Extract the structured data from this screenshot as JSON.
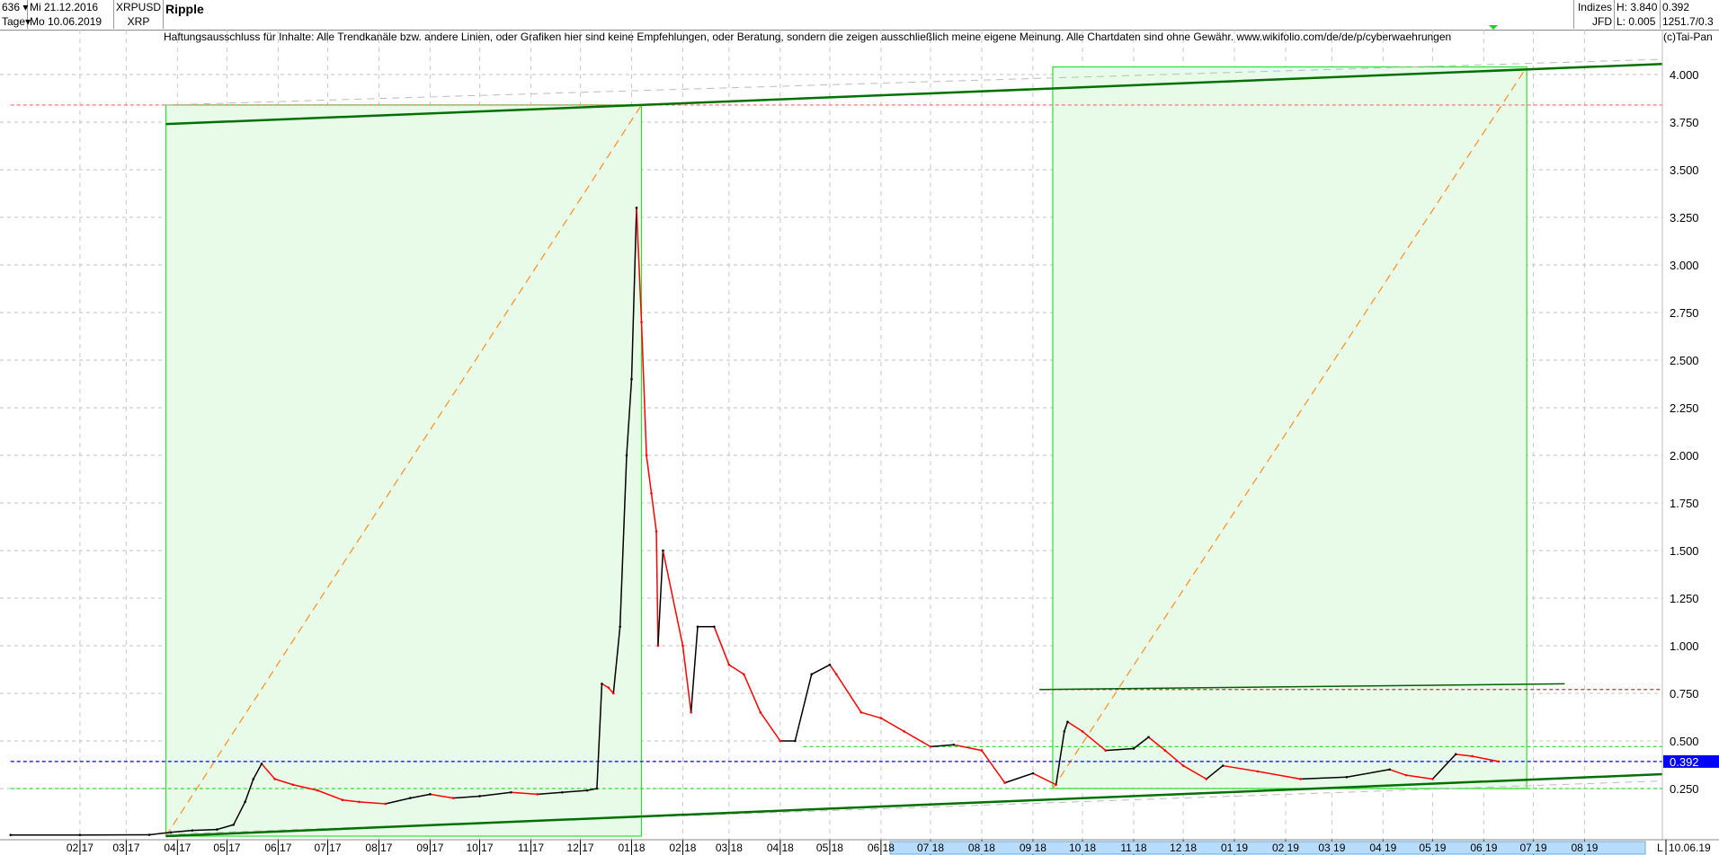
{
  "header": {
    "count_select": "636 ▾",
    "period_select": "Tage▾",
    "start_date": "Mi 21.12.2016",
    "end_date": "Mo 10.06.2019",
    "symbol": "XRPUSD",
    "symbol_short": "XRP",
    "title": "Ripple",
    "group": "Indizes",
    "broker": "JFD",
    "high": "H: 3.840",
    "low": "L: 0.005",
    "last": "0.392",
    "info": "1251.7/0.3"
  },
  "disclaimer": "Haftungsausschluss für Inhalte: Alle Trendkanäle bzw. andere Linien, oder Grafiken hier sind keine Empfehlungen, oder Beratung, sondern die zeigen ausschließlich meine eigene Meinung. Alle Chartdaten sind ohne Gewähr.  www.wikifolio.com/de/de/p/cyberwaehrungen",
  "copyright": "(c)Tai-Pan",
  "bottom": {
    "scroll_marker": "L",
    "date": "10.06.19"
  },
  "colors": {
    "up": "#000000",
    "down": "#ff0000",
    "box_fill": "#e8fbe8",
    "box_stroke": "#33dd33",
    "trend": "#007000",
    "last_price": "#0000ff",
    "diagonal": "#ff8c1a"
  },
  "chart_data": {
    "type": "line",
    "title": "Ripple",
    "ylim": [
      0,
      4.1
    ],
    "grid": true,
    "y_ticks": [
      "0.250",
      "0.500",
      "0.750",
      "1.000",
      "1.250",
      "1.500",
      "1.750",
      "2.000",
      "2.250",
      "2.500",
      "2.750",
      "3.000",
      "3.250",
      "3.500",
      "3.750",
      "4.000"
    ],
    "x_ticks": [
      "02 17",
      "03 17",
      "04 17",
      "05 17",
      "06 17",
      "07 17",
      "08 17",
      "09 17",
      "10 17",
      "11 17",
      "12 17",
      "01 18",
      "02 18",
      "03 18",
      "04 18",
      "05 18",
      "06 18",
      "07 18",
      "08 18",
      "09 18",
      "10 18",
      "11 18",
      "12 18",
      "01 19",
      "02 19",
      "03 19",
      "04 19",
      "05 19",
      "06 19",
      "07 19",
      "08 19"
    ],
    "last_value": "0.392",
    "series": [
      {
        "x": [
          "2016-12-21",
          "2017-02-01",
          "2017-03-15",
          "2017-03-28",
          "2017-04-10",
          "2017-04-25",
          "2017-05-05",
          "2017-05-12",
          "2017-05-17",
          "2017-05-22",
          "2017-05-30",
          "2017-06-10",
          "2017-06-25",
          "2017-07-10",
          "2017-07-20",
          "2017-08-05",
          "2017-08-20",
          "2017-09-01",
          "2017-09-15",
          "2017-10-01",
          "2017-10-20",
          "2017-11-05",
          "2017-11-20",
          "2017-12-05",
          "2017-12-11",
          "2017-12-14",
          "2017-12-18",
          "2017-12-21",
          "2017-12-25",
          "2017-12-29",
          "2018-01-01",
          "2018-01-04",
          "2018-01-07",
          "2018-01-10",
          "2018-01-13",
          "2018-01-16",
          "2018-01-17",
          "2018-01-20",
          "2018-02-01",
          "2018-02-06",
          "2018-02-10",
          "2018-02-20",
          "2018-03-01",
          "2018-03-10",
          "2018-03-20",
          "2018-04-01",
          "2018-04-10",
          "2018-04-20",
          "2018-05-01",
          "2018-05-05",
          "2018-05-20",
          "2018-06-01",
          "2018-06-15",
          "2018-07-01",
          "2018-07-15",
          "2018-08-01",
          "2018-08-15",
          "2018-09-01",
          "2018-09-15",
          "2018-09-20",
          "2018-09-22",
          "2018-10-01",
          "2018-10-15",
          "2018-11-01",
          "2018-11-10",
          "2018-11-20",
          "2018-12-01",
          "2018-12-15",
          "2018-12-25",
          "2019-01-15",
          "2019-02-10",
          "2019-03-10",
          "2019-04-05",
          "2019-04-15",
          "2019-05-01",
          "2019-05-15",
          "2019-05-25",
          "2019-06-10"
        ],
        "y": [
          0.006,
          0.006,
          0.007,
          0.02,
          0.03,
          0.035,
          0.06,
          0.18,
          0.3,
          0.38,
          0.3,
          0.27,
          0.24,
          0.19,
          0.18,
          0.17,
          0.2,
          0.22,
          0.2,
          0.21,
          0.23,
          0.22,
          0.23,
          0.24,
          0.25,
          0.8,
          0.78,
          0.75,
          1.1,
          2.0,
          2.4,
          3.3,
          2.7,
          2.0,
          1.8,
          1.6,
          1.0,
          1.5,
          1.0,
          0.65,
          1.1,
          1.1,
          0.9,
          0.85,
          0.65,
          0.5,
          0.5,
          0.85,
          0.9,
          0.85,
          0.65,
          0.62,
          0.55,
          0.47,
          0.48,
          0.45,
          0.28,
          0.33,
          0.27,
          0.55,
          0.6,
          0.55,
          0.45,
          0.46,
          0.52,
          0.45,
          0.37,
          0.3,
          0.37,
          0.34,
          0.3,
          0.31,
          0.35,
          0.32,
          0.3,
          0.43,
          0.42,
          0.392
        ]
      }
    ],
    "annotations": {
      "boxes": [
        {
          "x0": "2017-03-25",
          "x1": "2018-01-07",
          "y0": 0.0,
          "y1": 3.84
        },
        {
          "x0": "2018-09-13",
          "x1": "2019-06-27",
          "y0": 0.25,
          "y1": 4.04
        }
      ],
      "trend_lines": [
        {
          "x0": "2017-03-25",
          "y0": 3.74,
          "x1": "2019-09-30",
          "y1": 4.06
        },
        {
          "x0": "2017-03-25",
          "y0": 0.0,
          "x1": "2019-09-30",
          "y1": 0.33
        },
        {
          "x0": "2018-09-05",
          "y0": 0.77,
          "x1": "2019-07-20",
          "y1": 0.8
        }
      ],
      "h_lines": [
        {
          "value": 3.84,
          "color": "#ff6666",
          "from": "2016-12-21"
        },
        {
          "value": 0.77,
          "color": "#cc3333",
          "from": "2018-09-05"
        },
        {
          "value": 0.392,
          "color": "#0000ff",
          "from": "2016-12-21"
        },
        {
          "value": 0.25,
          "color": "#33dd33",
          "from": "2016-12-21"
        },
        {
          "value": 0.47,
          "color": "#33dd33",
          "from": "2018-04-15"
        }
      ]
    }
  }
}
